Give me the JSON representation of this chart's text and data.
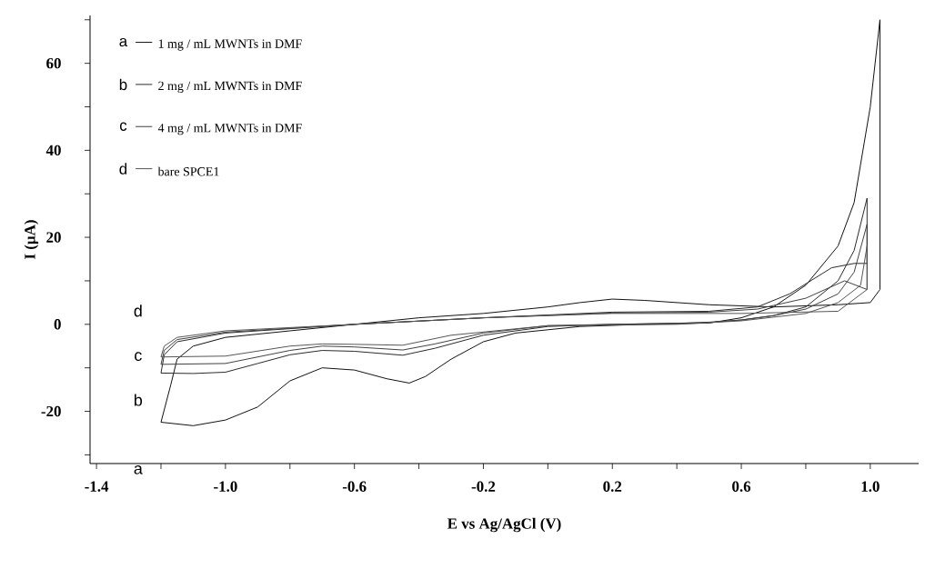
{
  "chart_data": {
    "type": "line",
    "xlabel": "E vs Ag/AgCl (V)",
    "ylabel": "I (µA)",
    "xlim": [
      -1.42,
      1.15
    ],
    "ylim": [
      -32,
      71
    ],
    "xticks": [
      -1.4,
      {
        "value": -1.2,
        "label": null
      },
      {
        "value": -1,
        "label": "-1.0"
      },
      {
        "value": -0.8,
        "label": null
      },
      -0.6,
      {
        "value": -0.4,
        "label": null
      },
      -0.2,
      {
        "value": 0,
        "label": null
      },
      0.2,
      {
        "value": 0.4,
        "label": null
      },
      0.6,
      {
        "value": 0.8,
        "label": null
      },
      {
        "value": 1,
        "label": "1.0"
      }
    ],
    "yticks": [
      {
        "value": -30,
        "label": null
      },
      -20,
      {
        "value": -10,
        "label": null
      },
      0,
      {
        "value": 10,
        "label": null
      },
      20,
      {
        "value": 30,
        "label": null
      },
      40,
      {
        "value": 50,
        "label": null
      },
      60,
      {
        "value": 70,
        "label": null
      }
    ],
    "legend": "top left",
    "annotations": [
      "a",
      "b",
      "c",
      "d",
      "d",
      "c",
      "b",
      "a"
    ],
    "series": [
      {
        "name": "1 mg / mL MWNTs in DMF",
        "color": "#111111",
        "x": [
          -1.2,
          -1.1,
          -1.0,
          -0.9,
          -0.8,
          -0.7,
          -0.6,
          -0.5,
          -0.43,
          -0.38,
          -0.3,
          -0.2,
          -0.1,
          0.1,
          0.3,
          0.5,
          0.6,
          0.7,
          0.8,
          0.9,
          0.95,
          1.0,
          1.03
        ],
        "values": [
          -22.5,
          -23.3,
          -22,
          -19,
          -13,
          -10,
          -10.5,
          -12.5,
          -13.5,
          -12,
          -8,
          -4,
          -2,
          -0.5,
          0,
          0.3,
          1.5,
          4,
          9,
          18,
          28,
          50,
          70
        ]
      },
      {
        "color": "#111111",
        "x": [
          -1.2,
          -1.17,
          -1.15,
          -1.1,
          -1.0,
          -0.8,
          -0.6,
          -0.4,
          -0.2,
          0,
          0.1,
          0.2,
          0.3,
          0.5,
          0.7,
          0.9,
          1.0,
          1.03,
          1.03
        ],
        "values": [
          -22.5,
          -14,
          -8,
          -5,
          -3,
          -1.5,
          0,
          1.5,
          2.5,
          4,
          5,
          5.8,
          5.5,
          4.5,
          4,
          4.5,
          5,
          8,
          70
        ]
      },
      {
        "name": "2 mg / mL MWNTs in DMF",
        "color": "#2a2a2a",
        "x": [
          -1.2,
          -1.1,
          -1.0,
          -0.9,
          -0.8,
          -0.7,
          -0.6,
          -0.45,
          -0.35,
          -0.2,
          0,
          0.2,
          0.4,
          0.5,
          0.6,
          0.7,
          0.8,
          0.9,
          0.95,
          0.99
        ],
        "values": [
          -11.2,
          -11.3,
          -11,
          -9,
          -7,
          -6,
          -6.2,
          -7.1,
          -5.5,
          -2.5,
          -0.5,
          0,
          0.2,
          0.5,
          1,
          2,
          4,
          10,
          17,
          29
        ]
      },
      {
        "color": "#2a2a2a",
        "x": [
          -1.2,
          -1.19,
          -1.15,
          -1.0,
          -0.6,
          -0.2,
          0.2,
          0.5,
          0.65,
          0.75,
          0.88,
          0.95,
          0.99,
          0.99
        ],
        "values": [
          -11.2,
          -7,
          -4,
          -2,
          0,
          1.5,
          2.8,
          3,
          4,
          7,
          13,
          14,
          14,
          29
        ]
      },
      {
        "name": "4 mg / mL MWNTs in DMF",
        "color": "#404040",
        "x": [
          -1.2,
          -1.0,
          -0.8,
          -0.7,
          -0.6,
          -0.45,
          -0.35,
          -0.2,
          0,
          0.2,
          0.5,
          0.6,
          0.7,
          0.8,
          0.9,
          0.95,
          0.99
        ],
        "values": [
          -9.2,
          -9,
          -6,
          -5,
          -5.2,
          -5.9,
          -4.5,
          -2,
          -0.3,
          0,
          0.4,
          1,
          2,
          3.5,
          7,
          12,
          23
        ]
      },
      {
        "color": "#404040",
        "x": [
          -1.2,
          -1.19,
          -1.15,
          -1.0,
          -0.6,
          -0.2,
          0.2,
          0.5,
          0.65,
          0.8,
          0.92,
          0.99,
          0.99
        ],
        "values": [
          -9.2,
          -6,
          -3.5,
          -1.8,
          0,
          1.5,
          2.6,
          2.8,
          3.5,
          6,
          10,
          8,
          23
        ]
      },
      {
        "name": "bare SPCE1",
        "color": "#555555",
        "x": [
          -1.2,
          -1.0,
          -0.8,
          -0.7,
          -0.6,
          -0.45,
          -0.3,
          0,
          0.4,
          0.6,
          0.8,
          0.9,
          0.97,
          0.99
        ],
        "values": [
          -7.5,
          -7.3,
          -5,
          -4.5,
          -4.6,
          -4.8,
          -2.5,
          -0.3,
          0,
          0.8,
          2.5,
          5,
          9,
          18
        ]
      },
      {
        "color": "#555555",
        "x": [
          -1.2,
          -1.19,
          -1.15,
          -1.0,
          -0.6,
          -0.2,
          0.2,
          0.6,
          0.9,
          0.99,
          0.99
        ],
        "values": [
          -7.5,
          -5,
          -3,
          -1.5,
          0,
          1.5,
          2.5,
          2.5,
          3,
          8,
          18
        ]
      }
    ]
  }
}
